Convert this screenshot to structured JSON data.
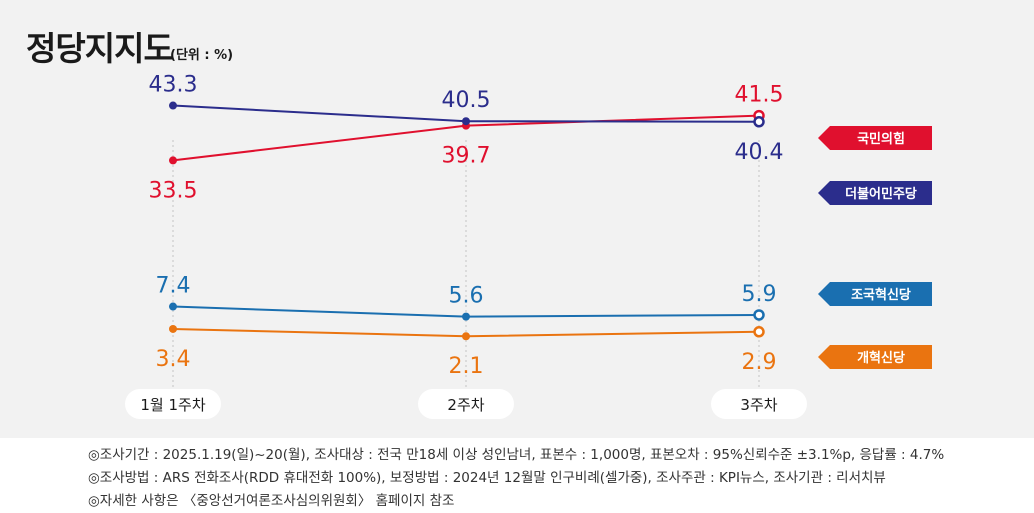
{
  "title": "정당지지도",
  "unit": "(단위 : %)",
  "chart_data": {
    "type": "line",
    "categories": [
      "1월 1주차",
      "2주차",
      "3주차"
    ],
    "ylim": [
      0,
      50
    ],
    "series": [
      {
        "name": "국민의힘",
        "color": "#e0102e",
        "values": [
          33.5,
          39.7,
          41.5
        ],
        "labels": [
          "33.5",
          "39.7",
          "41.5"
        ],
        "label_pos": [
          "below",
          "below",
          "above"
        ]
      },
      {
        "name": "더불어민주당",
        "color": "#2b2d8c",
        "values": [
          43.3,
          40.5,
          40.4
        ],
        "labels": [
          "43.3",
          "40.5",
          "40.4"
        ],
        "label_pos": [
          "above",
          "above",
          "below"
        ]
      },
      {
        "name": "조국혁신당",
        "color": "#1a6fb0",
        "values": [
          7.4,
          5.6,
          5.9
        ],
        "labels": [
          "7.4",
          "5.6",
          "5.9"
        ],
        "label_pos": [
          "above",
          "above",
          "above"
        ]
      },
      {
        "name": "개혁신당",
        "color": "#ea7410",
        "values": [
          3.4,
          2.1,
          2.9
        ],
        "labels": [
          "3.4",
          "2.1",
          "2.9"
        ],
        "label_pos": [
          "below",
          "below",
          "below"
        ]
      }
    ],
    "legend_placement": "right",
    "last_point_marker": "hollow-circle"
  },
  "notes": [
    "◎조사기간 : 2025.1.19(일)~20(월), 조사대상 : 전국 만18세 이상 성인남녀, 표본수 : 1,000명, 표본오차 : 95%신뢰수준 ±3.1%p, 응답률 : 4.7%",
    "◎조사방법 : ARS 전화조사(RDD 휴대전화 100%), 보정방법 : 2024년 12월말 인구비례(셀가중), 조사주관 : KPI뉴스, 조사기관 : 리서치뷰",
    "◎자세한 사항은 〈중앙선거여론조사심의위원회〉 홈페이지 참조"
  ]
}
